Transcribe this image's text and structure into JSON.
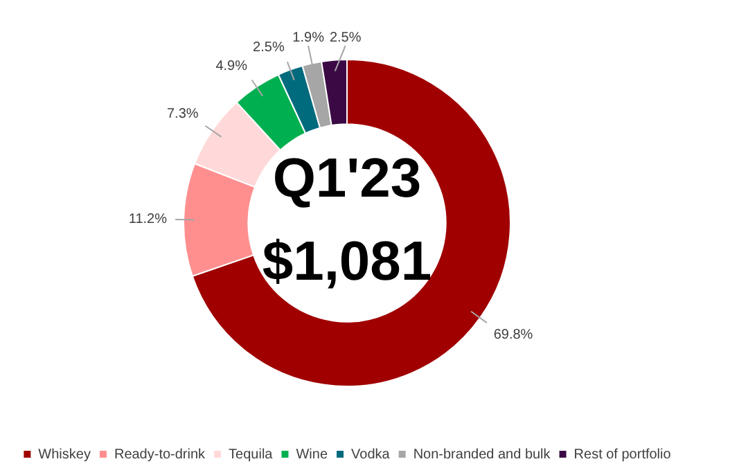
{
  "chart_data": {
    "type": "donut",
    "categories": [
      "Whiskey",
      "Ready-to-drink",
      "Tequila",
      "Wine",
      "Vodka",
      "Non-branded and bulk",
      "Rest of portfolio"
    ],
    "values": [
      69.8,
      11.2,
      7.3,
      4.9,
      2.5,
      1.9,
      2.5
    ],
    "colors": [
      "#a00000",
      "#ff8f8f",
      "#ffd9d9",
      "#00b050",
      "#006b7d",
      "#a6a6a6",
      "#3b0a45"
    ],
    "value_labels": [
      "69.8%",
      "11.2%",
      "7.3%",
      "4.9%",
      "2.5%",
      "1.9%",
      "2.5%"
    ],
    "annotations": [
      "Q1'23",
      "$1,081"
    ],
    "legend": "bottom"
  }
}
